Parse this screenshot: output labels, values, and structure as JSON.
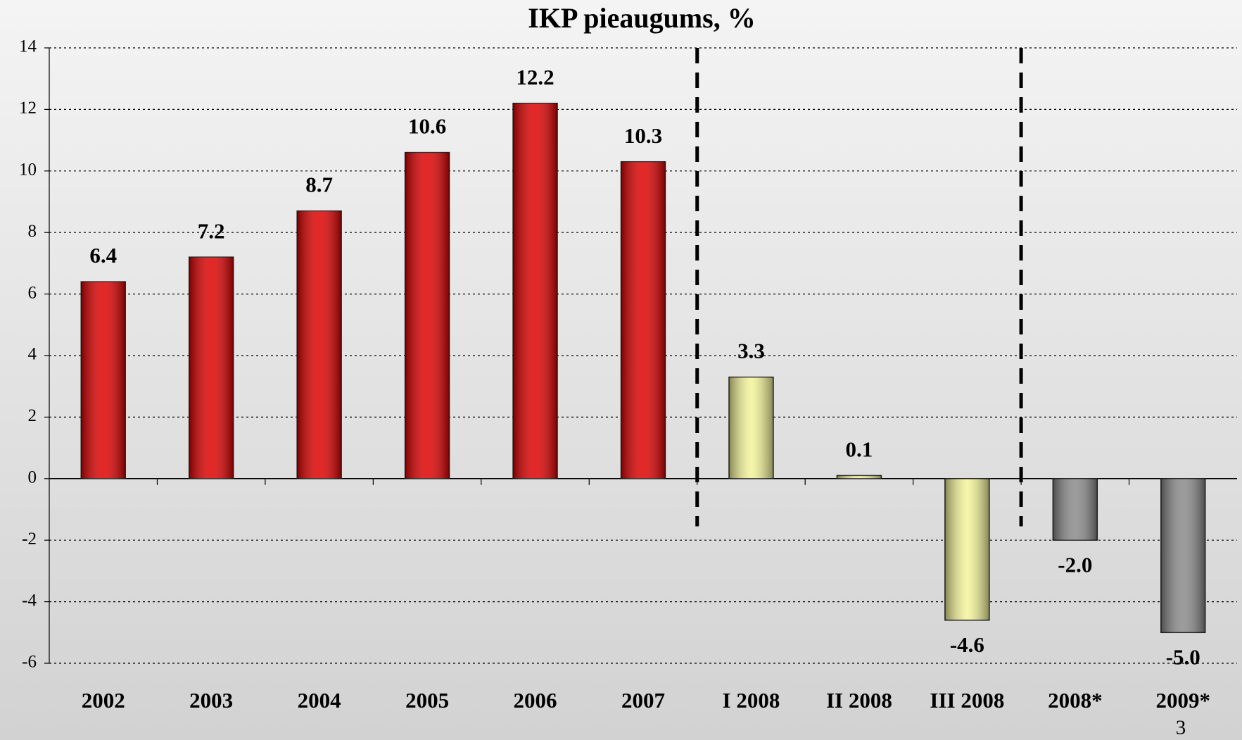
{
  "chart_data": {
    "type": "bar",
    "title": "IKP pieaugums, %",
    "categories": [
      "2002",
      "2003",
      "2004",
      "2005",
      "2006",
      "2007",
      "I 2008",
      "II 2008",
      "III 2008",
      "2008*",
      "2009*"
    ],
    "values": [
      6.4,
      7.2,
      8.7,
      10.6,
      12.2,
      10.3,
      3.3,
      0.1,
      -4.6,
      -2.0,
      -5.0
    ],
    "value_labels": [
      "6.4",
      "7.2",
      "8.7",
      "10.6",
      "12.2",
      "10.3",
      "3.3",
      "0.1",
      "-4.6",
      "-2.0",
      "-5.0"
    ],
    "colors": [
      "#e00000",
      "#e00000",
      "#e00000",
      "#e00000",
      "#e00000",
      "#e00000",
      "#f4f49a",
      "#f4f49a",
      "#f4f49a",
      "#8a8a8a",
      "#8a8a8a"
    ],
    "ylim": [
      -6,
      14
    ],
    "yticks": [
      -6,
      -4,
      -2,
      0,
      2,
      4,
      6,
      8,
      10,
      12,
      14
    ],
    "grid": true
  },
  "page_number": "3"
}
